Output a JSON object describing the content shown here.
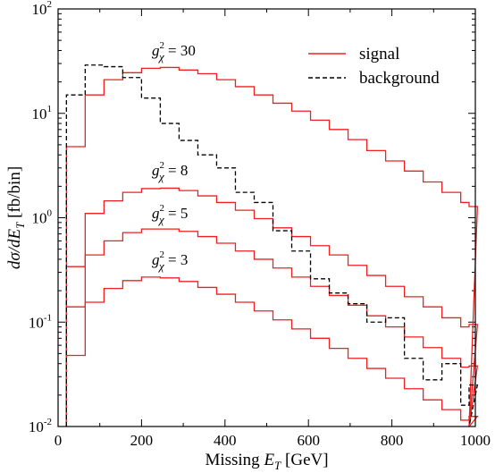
{
  "chart_data": {
    "type": "line",
    "x_label_parts": [
      "Missing ",
      "E",
      "T",
      " [GeV]"
    ],
    "y_label_parts": [
      "dσ/d",
      "E",
      "T",
      " [fb/bin]"
    ],
    "x_range": [
      0,
      1000
    ],
    "y_range": [
      0.01,
      100
    ],
    "y_scale": "log",
    "x_ticks": [
      "0",
      "200",
      "400",
      "600",
      "800",
      "1000"
    ],
    "y_tick_base": "10",
    "y_tick_exps": [
      "-2",
      "-1",
      "0",
      "1",
      "2"
    ],
    "bin_edges": [
      20,
      65,
      110,
      155,
      200,
      245,
      290,
      335,
      380,
      425,
      470,
      515,
      560,
      605,
      650,
      695,
      740,
      785,
      830,
      875,
      920,
      965,
      985
    ],
    "legend_position": "top-right",
    "legend": [
      {
        "label": "signal",
        "color": "#ee2020",
        "dash": "none"
      },
      {
        "label": "background",
        "color": "#000000",
        "dash": "5,3"
      }
    ],
    "series": [
      {
        "name": "signal",
        "annotation_parts": [
          "g",
          "2",
          "χ",
          " = 30"
        ],
        "color": "#ee2020",
        "values": [
          4.8,
          15,
          21,
          24.5,
          27,
          27.5,
          26,
          24,
          21,
          18,
          15,
          12.5,
          10.5,
          8.6,
          7.0,
          5.6,
          4.4,
          3.5,
          2.8,
          2.2,
          1.75,
          1.4,
          1.28
        ]
      },
      {
        "name": "signal",
        "annotation_parts": [
          "g",
          "2",
          "χ",
          " = 8"
        ],
        "color": "#ee2020",
        "values": [
          0.34,
          1.1,
          1.45,
          1.75,
          1.9,
          1.92,
          1.82,
          1.62,
          1.4,
          1.18,
          0.98,
          0.8,
          0.66,
          0.54,
          0.44,
          0.35,
          0.28,
          0.22,
          0.175,
          0.14,
          0.11,
          0.09,
          0.095
        ]
      },
      {
        "name": "signal",
        "annotation_parts": [
          "g",
          "2",
          "χ",
          " = 5"
        ],
        "color": "#ee2020",
        "values": [
          0.14,
          0.44,
          0.6,
          0.72,
          0.78,
          0.78,
          0.74,
          0.66,
          0.57,
          0.48,
          0.4,
          0.33,
          0.27,
          0.22,
          0.18,
          0.145,
          0.115,
          0.09,
          0.072,
          0.057,
          0.045,
          0.037,
          0.038
        ]
      },
      {
        "name": "signal",
        "annotation_parts": [
          "g",
          "2",
          "χ",
          " = 3"
        ],
        "color": "#ee2020",
        "values": [
          0.048,
          0.155,
          0.21,
          0.25,
          0.27,
          0.265,
          0.245,
          0.215,
          0.185,
          0.155,
          0.128,
          0.105,
          0.086,
          0.07,
          0.056,
          0.045,
          0.036,
          0.029,
          0.023,
          0.018,
          0.0145,
          0.0115,
          0.0125
        ]
      },
      {
        "name": "background",
        "color": "#000000",
        "values": [
          15,
          29,
          28,
          22,
          14,
          8,
          5.5,
          4.0,
          3.0,
          1.75,
          1.4,
          0.75,
          0.48,
          0.26,
          0.19,
          0.15,
          0.1,
          0.11,
          0.045,
          0.028,
          0.04,
          0.016,
          0.025
        ]
      }
    ]
  }
}
